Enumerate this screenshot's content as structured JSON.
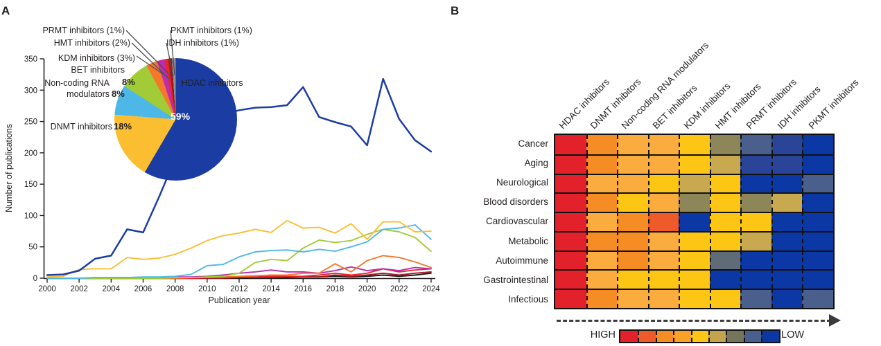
{
  "panelA": {
    "label": "A",
    "pie_callouts": [
      {
        "id": "prmt",
        "text": "PRMT inhibitors (1%)"
      },
      {
        "id": "pkmt",
        "text": "PKMT inhibitors (1%)"
      },
      {
        "id": "hmt",
        "text": "HMT inhibitors (2%)"
      },
      {
        "id": "idh",
        "text": "IDH inhibitors (1%)"
      },
      {
        "id": "kdm",
        "text": "KDM inhibitors (3%)"
      },
      {
        "id": "bet",
        "text": "BET inhibitors"
      },
      {
        "id": "ncrna",
        "text": "Non-coding RNA modulators"
      },
      {
        "id": "dnmt",
        "text": "DNMT inhibitors"
      },
      {
        "id": "hdac",
        "text": "HDAC inhibitors"
      }
    ],
    "pie_value_labels": [
      {
        "id": "bet",
        "text": "8%"
      },
      {
        "id": "ncrna",
        "text": "8%"
      },
      {
        "id": "dnmt",
        "text": "18%"
      },
      {
        "id": "hdac",
        "text": "59%"
      }
    ]
  },
  "panelB": {
    "label": "B"
  },
  "chart_data": [
    {
      "id": "publications_by_year",
      "type": "line",
      "title": "",
      "xlabel": "Publication year",
      "ylabel": "Number of publications",
      "xlim": [
        2000,
        2024
      ],
      "ylim": [
        0,
        350
      ],
      "grid": false,
      "legend_position": "none",
      "x_ticks": [
        2000,
        2002,
        2004,
        2006,
        2008,
        2010,
        2012,
        2014,
        2016,
        2018,
        2020,
        2022,
        2024
      ],
      "y_ticks": [
        0,
        50,
        100,
        150,
        200,
        250,
        300,
        350
      ],
      "x": [
        2000,
        2001,
        2002,
        2003,
        2004,
        2005,
        2006,
        2007,
        2008,
        2009,
        2010,
        2011,
        2012,
        2013,
        2014,
        2015,
        2016,
        2017,
        2018,
        2019,
        2020,
        2021,
        2022,
        2023,
        2024
      ],
      "series": [
        {
          "name": "HDAC inhibitors",
          "color": "#1B3CA3",
          "values": [
            5,
            6,
            12,
            31,
            36,
            78,
            73,
            130,
            190,
            235,
            262,
            262,
            268,
            272,
            273,
            276,
            305,
            257,
            249,
            242,
            212,
            318,
            254,
            220,
            202
          ]
        },
        {
          "name": "DNMT inhibitors",
          "color": "#FBBE31",
          "values": [
            2,
            3,
            14,
            15,
            15,
            33,
            30,
            32,
            38,
            48,
            60,
            68,
            72,
            78,
            73,
            92,
            80,
            81,
            72,
            87,
            62,
            90,
            90,
            74,
            75
          ]
        },
        {
          "name": "Non-coding RNA modulators",
          "color": "#4DB8E8",
          "values": [
            0,
            0,
            0,
            1,
            1,
            1,
            2,
            2,
            3,
            6,
            20,
            22,
            34,
            42,
            44,
            45,
            42,
            46,
            43,
            50,
            58,
            78,
            80,
            85,
            62
          ]
        },
        {
          "name": "BET inhibitors",
          "color": "#A2CB38",
          "values": [
            0,
            0,
            0,
            0,
            0,
            0,
            0,
            0,
            1,
            1,
            2,
            3,
            8,
            25,
            30,
            28,
            48,
            61,
            57,
            60,
            70,
            78,
            74,
            65,
            43
          ]
        },
        {
          "name": "KDM inhibitors",
          "color": "#F4772B",
          "values": [
            0,
            0,
            0,
            0,
            0,
            0,
            0,
            0,
            0,
            1,
            1,
            2,
            3,
            4,
            5,
            5,
            8,
            8,
            23,
            10,
            28,
            36,
            33,
            26,
            17
          ]
        },
        {
          "name": "HMT inhibitors",
          "color": "#BC2BB0",
          "values": [
            0,
            0,
            0,
            0,
            1,
            1,
            1,
            1,
            2,
            2,
            3,
            5,
            8,
            10,
            13,
            10,
            10,
            8,
            12,
            18,
            12,
            15,
            12,
            17,
            15
          ]
        },
        {
          "name": "PRMT inhibitors",
          "color": "#E8252C",
          "values": [
            0,
            0,
            0,
            0,
            0,
            0,
            0,
            0,
            0,
            0,
            1,
            1,
            2,
            2,
            3,
            3,
            3,
            5,
            8,
            5,
            8,
            15,
            10,
            13,
            15
          ]
        },
        {
          "name": "IDH inhibitors",
          "color": "#9C1B20",
          "values": [
            0,
            0,
            0,
            0,
            0,
            0,
            0,
            0,
            0,
            0,
            0,
            0,
            1,
            1,
            1,
            2,
            2,
            2,
            5,
            3,
            5,
            8,
            5,
            8,
            10
          ]
        },
        {
          "name": "PKMT inhibitors",
          "color": "#1A1A1A",
          "values": [
            0,
            0,
            0,
            0,
            0,
            0,
            0,
            0,
            0,
            0,
            0,
            0,
            0,
            1,
            1,
            1,
            2,
            2,
            3,
            2,
            3,
            5,
            3,
            5,
            8
          ]
        }
      ]
    },
    {
      "id": "inhibitor_share_pie",
      "type": "pie",
      "slices": [
        {
          "label": "HDAC inhibitors",
          "pct": 59,
          "color": "#1B3CA3"
        },
        {
          "label": "DNMT inhibitors",
          "pct": 18,
          "color": "#FBBE31"
        },
        {
          "label": "Non-coding RNA modulators",
          "pct": 8,
          "color": "#4DB8E8"
        },
        {
          "label": "BET inhibitors",
          "pct": 8,
          "color": "#A2CB38"
        },
        {
          "label": "KDM inhibitors",
          "pct": 3,
          "color": "#F4772B"
        },
        {
          "label": "HMT inhibitors",
          "pct": 2,
          "color": "#BC2BB0"
        },
        {
          "label": "PRMT inhibitors",
          "pct": 1,
          "color": "#E8252C"
        },
        {
          "label": "IDH inhibitors",
          "pct": 1,
          "color": "#9C1B20"
        },
        {
          "label": "PKMT inhibitors",
          "pct": 1,
          "color": "#8E9093"
        }
      ]
    },
    {
      "id": "disease_vs_inhibitor_heatmap",
      "type": "heatmap",
      "columns": [
        "HDAC inhibitors",
        "DNMT inhibitors",
        "Non-coding RNA modulators",
        "BET inhibitors",
        "KDM inhibitors",
        "HMT inhibitors",
        "PRMT inhibitors",
        "IDH inhibitors",
        "PKMT inhibitors"
      ],
      "rows": [
        "Cancer",
        "Aging",
        "Neurological",
        "Blood disorders",
        "Cardiovascular",
        "Metabolic",
        "Autoimmune",
        "Gastrointestinal",
        "Infectious"
      ],
      "palette": {
        "red": "#E3212B",
        "redorange": "#EF5A2A",
        "orange": "#F68C24",
        "amber": "#FBAC3E",
        "yellow": "#FDC514",
        "gold": "#C8A94F",
        "olive": "#8C8659",
        "gray": "#5F6B77",
        "slate": "#4A5F8C",
        "navy": "#2A4597",
        "blue": "#0C38A6"
      },
      "cells": [
        [
          "red",
          "orange",
          "amber",
          "amber",
          "yellow",
          "olive",
          "slate",
          "navy",
          "blue"
        ],
        [
          "red",
          "orange",
          "amber",
          "amber",
          "yellow",
          "gold",
          "navy",
          "navy",
          "blue"
        ],
        [
          "red",
          "amber",
          "amber",
          "yellow",
          "gold",
          "yellow",
          "blue",
          "blue",
          "slate"
        ],
        [
          "red",
          "orange",
          "yellow",
          "amber",
          "olive",
          "yellow",
          "olive",
          "gold",
          "blue"
        ],
        [
          "red",
          "amber",
          "orange",
          "redorange",
          "blue",
          "yellow",
          "yellow",
          "blue",
          "blue"
        ],
        [
          "red",
          "orange",
          "orange",
          "amber",
          "yellow",
          "yellow",
          "gold",
          "blue",
          "blue"
        ],
        [
          "red",
          "amber",
          "orange",
          "amber",
          "yellow",
          "gray",
          "blue",
          "blue",
          "blue"
        ],
        [
          "red",
          "amber",
          "yellow",
          "yellow",
          "yellow",
          "blue",
          "blue",
          "blue",
          "blue"
        ],
        [
          "red",
          "orange",
          "amber",
          "amber",
          "yellow",
          "yellow",
          "slate",
          "blue",
          "slate"
        ]
      ],
      "scale": {
        "high_label": "HIGH",
        "low_label": "LOW",
        "colors": [
          "#E3212B",
          "#EF5A2A",
          "#F68C24",
          "#F9A225",
          "#FDC514",
          "#C2A44C",
          "#75755C",
          "#4A5F8C",
          "#0C38A6"
        ]
      }
    }
  ]
}
